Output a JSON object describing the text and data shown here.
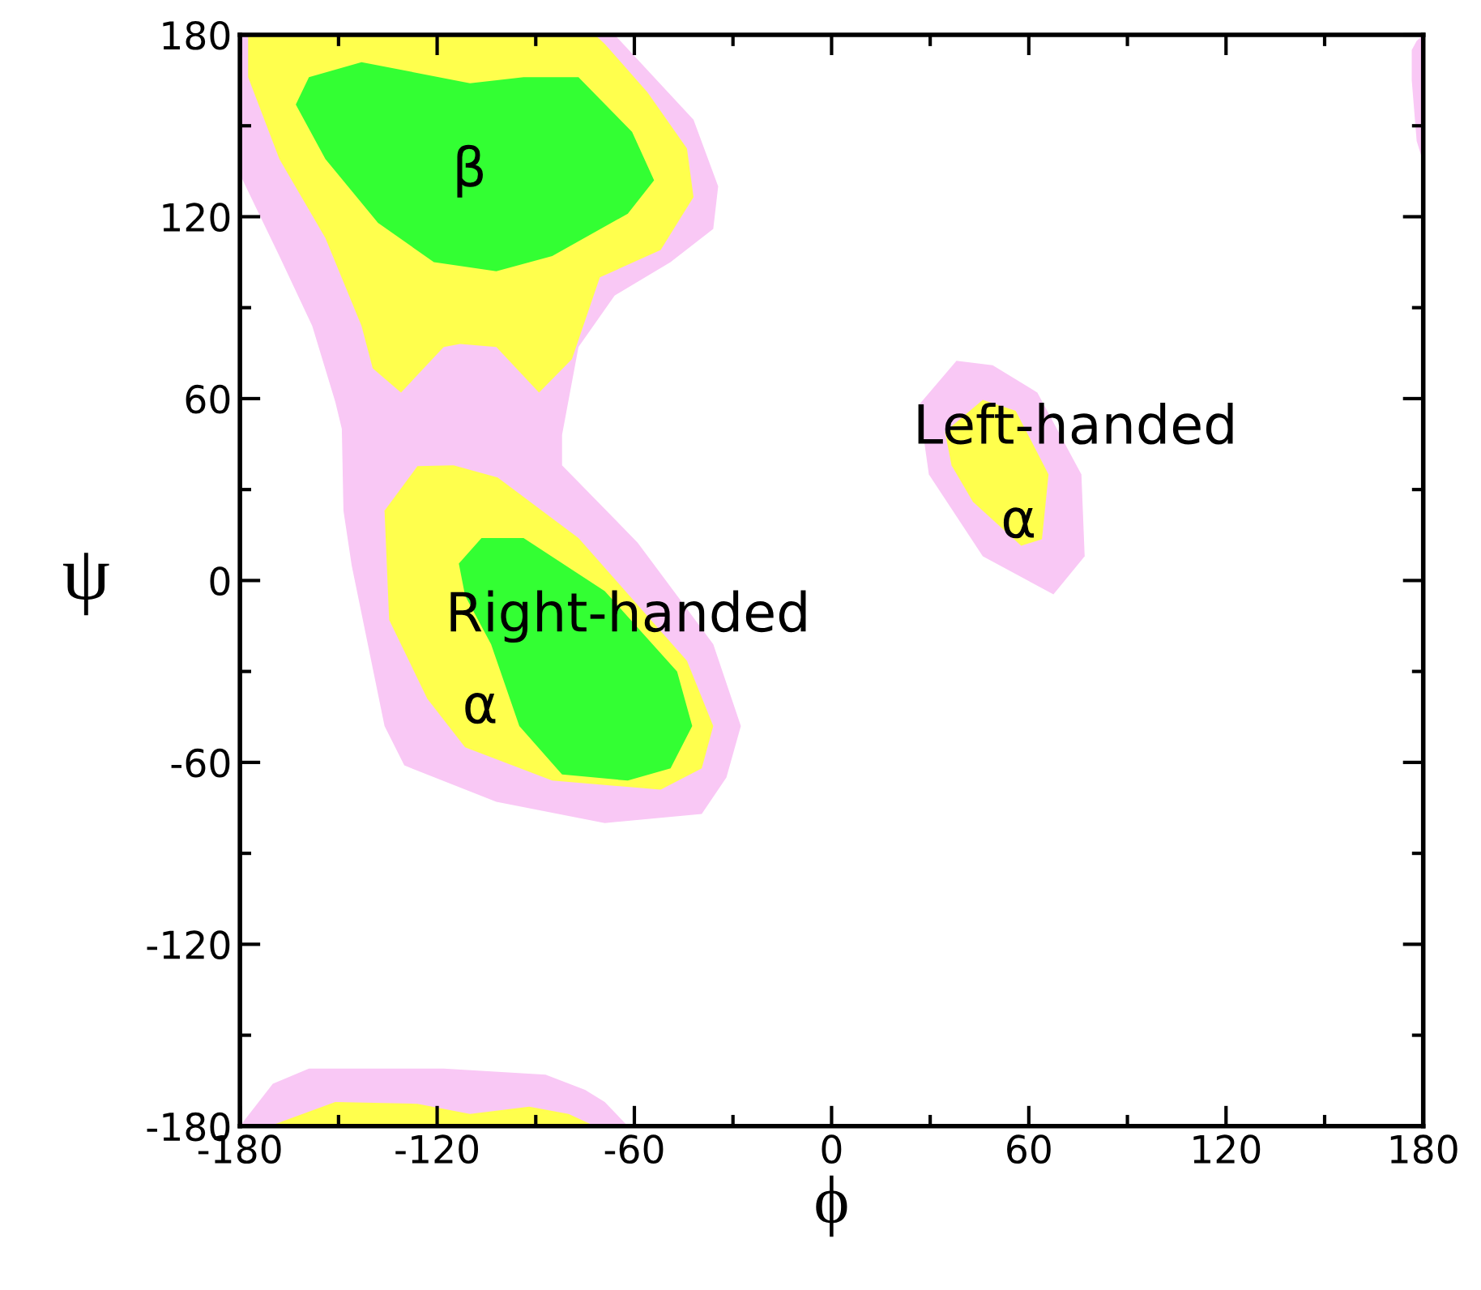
{
  "chart_data": {
    "type": "area",
    "xlabel": "ϕ",
    "ylabel": "ψ",
    "xlim": [
      -180,
      180
    ],
    "ylim": [
      -180,
      180
    ],
    "xticks": [
      -180,
      -120,
      -60,
      0,
      60,
      120,
      180
    ],
    "yticks": [
      -180,
      -120,
      -60,
      0,
      60,
      120,
      180
    ],
    "grid": false,
    "legend": false,
    "series": [
      {
        "color": "#f9c8f5",
        "x": [
          -180,
          -66,
          -42,
          -34.5,
          -36,
          -49,
          -66,
          -77,
          -82,
          -82,
          -59,
          -36,
          -27.6,
          -32,
          -39.5,
          -69,
          -102,
          -130,
          -136,
          -146,
          -148.5,
          -149,
          -151,
          -158,
          -168,
          -180
        ],
        "values": [
          180,
          180,
          152,
          130,
          116,
          105,
          94,
          77,
          48,
          38,
          12.5,
          -21,
          -48,
          -65,
          -77,
          -80,
          -73,
          -61,
          -48,
          5,
          23,
          50,
          59,
          84,
          107,
          134
        ]
      },
      {
        "color": "#f9c8f5",
        "x": [
          38,
          49,
          62.6,
          76,
          77,
          67.5,
          46,
          29.6,
          26.6
        ],
        "values": [
          72.5,
          71,
          62,
          35,
          8,
          -4.6,
          8,
          35,
          58
        ]
      },
      {
        "color": "#f9c8f5",
        "x": [
          -180,
          -170,
          -159,
          -118,
          -87,
          -75,
          -69,
          -62
        ],
        "values": [
          -180,
          -166,
          -161,
          -161,
          -163,
          -168,
          -172,
          -180
        ]
      },
      {
        "color": "#f9c8f5",
        "x": [
          176.5,
          178,
          180,
          180,
          178,
          176.5
        ],
        "values": [
          175,
          178,
          180,
          138,
          145,
          165
        ]
      },
      {
        "color": "#ffff4d",
        "x": [
          -177.5,
          -72,
          -69,
          -56,
          -44,
          -42,
          -52,
          -70.5,
          -79,
          -89,
          -102,
          -113,
          -118,
          -131,
          -139.6,
          -143,
          -154,
          -168,
          -177.5
        ],
        "values": [
          180,
          180,
          177,
          161,
          142.5,
          126.5,
          109,
          100,
          73,
          62,
          77,
          78,
          77,
          62,
          70,
          84,
          113,
          139,
          166
        ]
      },
      {
        "color": "#ffff4d",
        "x": [
          -126,
          -115,
          -101.6,
          -77,
          -44,
          -36,
          -39.5,
          -52,
          -85,
          -111.5,
          -123,
          -134.6,
          -136
        ],
        "values": [
          37.7,
          38,
          34,
          14,
          -26.5,
          -48,
          -62,
          -69,
          -66,
          -55,
          -39,
          -13,
          23
        ]
      },
      {
        "color": "#ffff4d",
        "x": [
          46,
          56,
          66,
          64,
          57.7,
          43,
          36.5,
          34.5
        ],
        "values": [
          59.6,
          56,
          35,
          13.6,
          11.5,
          26,
          38,
          49
        ]
      },
      {
        "color": "#ffff4d",
        "x": [
          -171,
          -151,
          -126,
          -110,
          -92,
          -80,
          -72
        ],
        "values": [
          -180,
          -172,
          -172.6,
          -176,
          -173.6,
          -176,
          -180
        ]
      },
      {
        "color": "#33ff33",
        "x": [
          -163,
          -159,
          -143,
          -110,
          -93.7,
          -77,
          -60.7,
          -54,
          -62,
          -85,
          -102,
          -121,
          -138,
          -154
        ],
        "values": [
          157,
          166,
          171,
          164,
          166,
          166,
          148,
          132,
          121,
          107,
          102,
          105,
          118,
          139
        ]
      },
      {
        "color": "#33ff33",
        "x": [
          -106.5,
          -93.7,
          -69,
          -47,
          -42.4,
          -49,
          -62,
          -82,
          -95,
          -103.6,
          -111.5,
          -113.4
        ],
        "values": [
          14,
          14,
          -3.5,
          -30,
          -48,
          -62,
          -66,
          -64,
          -48,
          -21,
          -5,
          5.6
        ]
      }
    ],
    "annotations": [
      "β",
      "Right-handed",
      "α",
      "Left-handed",
      "α"
    ]
  }
}
